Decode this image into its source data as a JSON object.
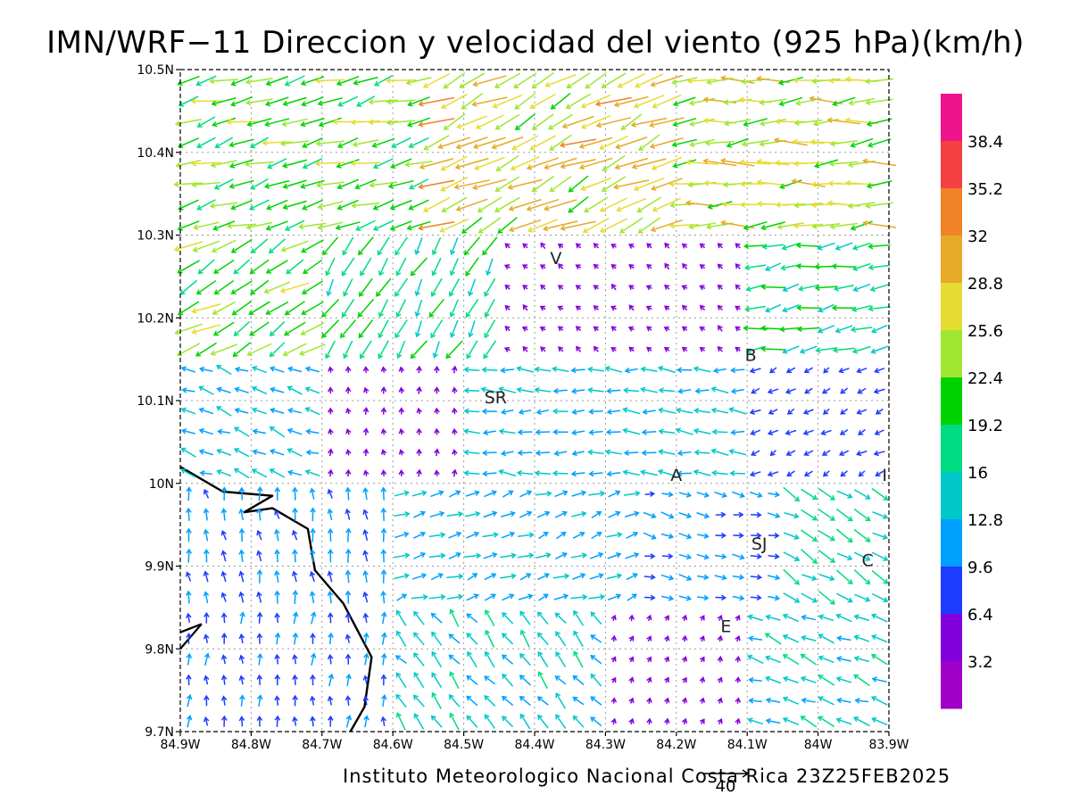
{
  "title": "IMN/WRF−11 Direccion y velocidad del viento (925 hPa)(km/h)",
  "footer": "Instituto Meteorologico Nacional Costa Rica 23Z25FEB2025",
  "reference_vector": {
    "label": "40",
    "speed": 40
  },
  "axes": {
    "lat_ticks": [
      "10.5N",
      "10.4N",
      "10.3N",
      "10.2N",
      "10.1N",
      "10N",
      "9.9N",
      "9.8N",
      "9.7N"
    ],
    "lon_ticks": [
      "84.9W",
      "84.8W",
      "84.7W",
      "84.6W",
      "84.5W",
      "84.4W",
      "84.3W",
      "84.2W",
      "84.1W",
      "84W",
      "83.9W"
    ],
    "lat_range": [
      9.7,
      10.5
    ],
    "lon_range": [
      -84.9,
      -83.9
    ],
    "grid": "dotted"
  },
  "colorbar": {
    "labels": [
      "38.4",
      "35.2",
      "32",
      "28.8",
      "25.6",
      "22.4",
      "19.2",
      "16",
      "12.8",
      "9.6",
      "6.4",
      "3.2"
    ],
    "colors": [
      "#f0148c",
      "#f44040",
      "#f08228",
      "#e6aa28",
      "#e6dc32",
      "#a0e632",
      "#00d200",
      "#00dc82",
      "#00c8c8",
      "#00a0ff",
      "#1e3cff",
      "#8200dc",
      "#a000c8"
    ]
  },
  "stations": [
    {
      "code": "V",
      "lon": -84.37,
      "lat": 10.265
    },
    {
      "code": "B",
      "lon": -84.095,
      "lat": 10.148
    },
    {
      "code": "SR",
      "lon": -84.455,
      "lat": 10.097
    },
    {
      "code": "A",
      "lon": -84.2,
      "lat": 10.003
    },
    {
      "code": "SJ",
      "lon": -84.083,
      "lat": 9.92
    },
    {
      "code": "C",
      "lon": -83.93,
      "lat": 9.9
    },
    {
      "code": "E",
      "lon": -84.13,
      "lat": 9.82
    },
    {
      "code": "I",
      "lon": -83.906,
      "lat": 10.003
    }
  ],
  "wind_regions": [
    {
      "lat_min": 10.3,
      "lat_max": 10.5,
      "lon_min": -84.9,
      "lon_max": -84.55,
      "dir_from": 75,
      "speed": 22
    },
    {
      "lat_min": 10.3,
      "lat_max": 10.5,
      "lon_min": -84.55,
      "lon_max": -84.2,
      "dir_from": 65,
      "speed": 27
    },
    {
      "lat_min": 10.3,
      "lat_max": 10.5,
      "lon_min": -84.2,
      "lon_max": -83.9,
      "dir_from": 85,
      "speed": 25
    },
    {
      "lat_min": 10.15,
      "lat_max": 10.3,
      "lon_min": -84.9,
      "lon_max": -84.7,
      "dir_from": 60,
      "speed": 22
    },
    {
      "lat_min": 10.15,
      "lat_max": 10.3,
      "lon_min": -84.7,
      "lon_max": -84.45,
      "dir_from": 30,
      "speed": 18
    },
    {
      "lat_min": 10.15,
      "lat_max": 10.3,
      "lon_min": -84.45,
      "lon_max": -84.1,
      "dir_from": 130,
      "speed": 5
    },
    {
      "lat_min": 10.15,
      "lat_max": 10.3,
      "lon_min": -84.1,
      "lon_max": -83.9,
      "dir_from": 80,
      "speed": 18
    },
    {
      "lat_min": 10.0,
      "lat_max": 10.15,
      "lon_min": -84.9,
      "lon_max": -84.7,
      "dir_from": 110,
      "speed": 13
    },
    {
      "lat_min": 10.0,
      "lat_max": 10.15,
      "lon_min": -84.7,
      "lon_max": -84.5,
      "dir_from": 175,
      "speed": 5
    },
    {
      "lat_min": 10.0,
      "lat_max": 10.15,
      "lon_min": -84.5,
      "lon_max": -84.1,
      "dir_from": 92,
      "speed": 13
    },
    {
      "lat_min": 10.0,
      "lat_max": 10.15,
      "lon_min": -84.1,
      "lon_max": -83.9,
      "dir_from": 60,
      "speed": 8
    },
    {
      "lat_min": 9.85,
      "lat_max": 10.0,
      "lon_min": -84.9,
      "lon_max": -84.6,
      "dir_from": 170,
      "speed": 10
    },
    {
      "lat_min": 9.85,
      "lat_max": 10.0,
      "lon_min": -84.6,
      "lon_max": -84.25,
      "dir_from": 250,
      "speed": 12
    },
    {
      "lat_min": 9.85,
      "lat_max": 10.0,
      "lon_min": -84.25,
      "lon_max": -84.05,
      "dir_from": 280,
      "speed": 10
    },
    {
      "lat_min": 9.85,
      "lat_max": 10.0,
      "lon_min": -84.05,
      "lon_max": -83.9,
      "dir_from": 300,
      "speed": 16
    },
    {
      "lat_min": 9.7,
      "lat_max": 9.85,
      "lon_min": -84.9,
      "lon_max": -84.6,
      "dir_from": 180,
      "speed": 9
    },
    {
      "lat_min": 9.7,
      "lat_max": 9.85,
      "lon_min": -84.6,
      "lon_max": -84.3,
      "dir_from": 140,
      "speed": 14
    },
    {
      "lat_min": 9.7,
      "lat_max": 9.85,
      "lon_min": -84.3,
      "lon_max": -84.1,
      "dir_from": 200,
      "speed": 4
    },
    {
      "lat_min": 9.7,
      "lat_max": 9.85,
      "lon_min": -84.1,
      "lon_max": -83.9,
      "dir_from": 110,
      "speed": 14
    }
  ],
  "coastline": [
    {
      "lon": -84.9,
      "lat": 10.02
    },
    {
      "lon": -84.84,
      "lat": 9.99
    },
    {
      "lon": -84.77,
      "lat": 9.985
    },
    {
      "lon": -84.81,
      "lat": 9.965
    },
    {
      "lon": -84.77,
      "lat": 9.97
    },
    {
      "lon": -84.72,
      "lat": 9.945
    },
    {
      "lon": -84.71,
      "lat": 9.895
    },
    {
      "lon": -84.67,
      "lat": 9.855
    },
    {
      "lon": -84.63,
      "lat": 9.79
    },
    {
      "lon": -84.64,
      "lat": 9.73
    },
    {
      "lon": -84.66,
      "lat": 9.7
    }
  ],
  "peninsula": [
    {
      "lon": -84.9,
      "lat": 9.8
    },
    {
      "lon": -84.87,
      "lat": 9.83
    },
    {
      "lon": -84.9,
      "lat": 9.82
    }
  ]
}
